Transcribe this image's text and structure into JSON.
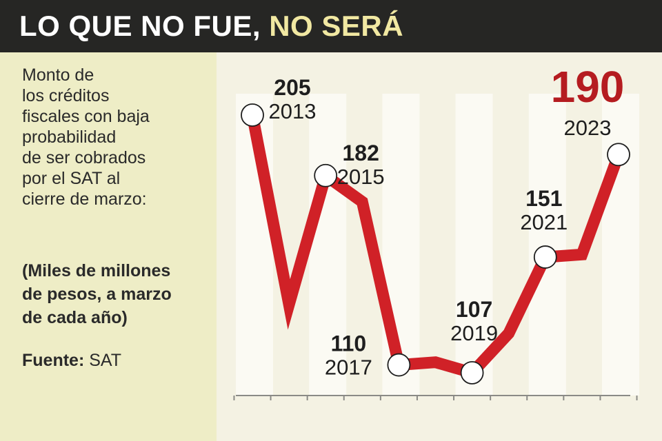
{
  "header": {
    "title_part1": "LO QUE NO FUE,",
    "title_part2": "NO SERÁ"
  },
  "sidebar": {
    "description_lines": [
      "Monto de",
      "los créditos",
      "fiscales con baja",
      "probabilidad",
      "de ser cobrados",
      "por el SAT al",
      "cierre de marzo:"
    ],
    "units_lines": [
      "(Miles de millones",
      "de pesos, a marzo",
      "de cada año)"
    ],
    "source_label": "Fuente:",
    "source_value": "SAT"
  },
  "colors": {
    "line": "#d02127",
    "highlight": "#b51c20",
    "header_bg": "#262624",
    "title_accent": "#f1e8a2",
    "sidebar_bg": "#eeedc6",
    "plot_bg": "#f4f2e3",
    "column_band": "#fbfaf3"
  },
  "chart_data": {
    "type": "line",
    "title": "LO QUE NO FUE, NO SERÁ",
    "xlabel": "",
    "ylabel": "",
    "x": [
      2013,
      2014,
      2015,
      2016,
      2017,
      2018,
      2019,
      2020,
      2021,
      2022,
      2023
    ],
    "values": [
      205,
      133,
      182,
      172,
      110,
      111,
      107,
      122,
      151,
      152,
      190
    ],
    "labeled_points": [
      {
        "year": "2013",
        "value": "205"
      },
      {
        "year": "2015",
        "value": "182"
      },
      {
        "year": "2017",
        "value": "110"
      },
      {
        "year": "2019",
        "value": "107"
      },
      {
        "year": "2021",
        "value": "151"
      },
      {
        "year": "2023",
        "value": "190",
        "highlight": true
      }
    ],
    "grid": false,
    "legend": "none"
  }
}
